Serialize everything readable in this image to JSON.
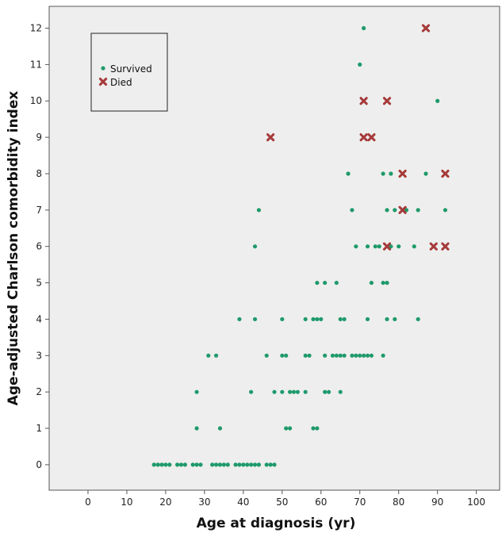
{
  "chart_data": {
    "type": "scatter",
    "title": "",
    "xlabel": "Age at diagnosis (yr)",
    "ylabel": "Age-adjusted Charlson comorbidity index",
    "xlim": [
      -10,
      106
    ],
    "ylim": [
      -0.7,
      12.6
    ],
    "x_ticks": [
      "0",
      "10",
      "20",
      "30",
      "40",
      "50",
      "60",
      "70",
      "80",
      "90",
      "100"
    ],
    "y_ticks": [
      "0",
      "1",
      "2",
      "3",
      "4",
      "5",
      "6",
      "7",
      "8",
      "9",
      "10",
      "11",
      "12"
    ],
    "grid": false,
    "legend_position": "top-left",
    "background": "#eeeeee",
    "series": [
      {
        "name": "Survived",
        "marker": "dot",
        "color": "#1f9a6b",
        "points": [
          [
            17,
            0
          ],
          [
            18,
            0
          ],
          [
            19,
            0
          ],
          [
            20,
            0
          ],
          [
            21,
            0
          ],
          [
            23,
            0
          ],
          [
            24,
            0
          ],
          [
            25,
            0
          ],
          [
            27,
            0
          ],
          [
            28,
            0
          ],
          [
            29,
            0
          ],
          [
            32,
            0
          ],
          [
            33,
            0
          ],
          [
            34,
            0
          ],
          [
            35,
            0
          ],
          [
            36,
            0
          ],
          [
            38,
            0
          ],
          [
            39,
            0
          ],
          [
            40,
            0
          ],
          [
            41,
            0
          ],
          [
            42,
            0
          ],
          [
            43,
            0
          ],
          [
            44,
            0
          ],
          [
            46,
            0
          ],
          [
            47,
            0
          ],
          [
            48,
            0
          ],
          [
            28,
            1
          ],
          [
            34,
            1
          ],
          [
            51,
            1
          ],
          [
            52,
            1
          ],
          [
            58,
            1
          ],
          [
            59,
            1
          ],
          [
            28,
            2
          ],
          [
            42,
            2
          ],
          [
            48,
            2
          ],
          [
            50,
            2
          ],
          [
            52,
            2
          ],
          [
            53,
            2
          ],
          [
            54,
            2
          ],
          [
            56,
            2
          ],
          [
            61,
            2
          ],
          [
            62,
            2
          ],
          [
            65,
            2
          ],
          [
            31,
            3
          ],
          [
            33,
            3
          ],
          [
            46,
            3
          ],
          [
            50,
            3
          ],
          [
            51,
            3
          ],
          [
            56,
            3
          ],
          [
            57,
            3
          ],
          [
            61,
            3
          ],
          [
            63,
            3
          ],
          [
            64,
            3
          ],
          [
            65,
            3
          ],
          [
            66,
            3
          ],
          [
            68,
            3
          ],
          [
            69,
            3
          ],
          [
            70,
            3
          ],
          [
            71,
            3
          ],
          [
            72,
            3
          ],
          [
            73,
            3
          ],
          [
            76,
            3
          ],
          [
            39,
            4
          ],
          [
            43,
            4
          ],
          [
            50,
            4
          ],
          [
            56,
            4
          ],
          [
            58,
            4
          ],
          [
            59,
            4
          ],
          [
            60,
            4
          ],
          [
            65,
            4
          ],
          [
            66,
            4
          ],
          [
            72,
            4
          ],
          [
            77,
            4
          ],
          [
            79,
            4
          ],
          [
            85,
            4
          ],
          [
            59,
            5
          ],
          [
            61,
            5
          ],
          [
            64,
            5
          ],
          [
            73,
            5
          ],
          [
            76,
            5
          ],
          [
            77,
            5
          ],
          [
            43,
            6
          ],
          [
            69,
            6
          ],
          [
            72,
            6
          ],
          [
            74,
            6
          ],
          [
            75,
            6
          ],
          [
            78,
            6
          ],
          [
            80,
            6
          ],
          [
            84,
            6
          ],
          [
            44,
            7
          ],
          [
            68,
            7
          ],
          [
            77,
            7
          ],
          [
            79,
            7
          ],
          [
            82,
            7
          ],
          [
            85,
            7
          ],
          [
            92,
            7
          ],
          [
            67,
            8
          ],
          [
            76,
            8
          ],
          [
            78,
            8
          ],
          [
            87,
            8
          ],
          [
            90,
            10
          ],
          [
            70,
            11
          ],
          [
            71,
            12
          ]
        ]
      },
      {
        "name": "Died",
        "marker": "x",
        "color": "#a63a3a",
        "points": [
          [
            47,
            9
          ],
          [
            71,
            9
          ],
          [
            73,
            9
          ],
          [
            71,
            10
          ],
          [
            77,
            10
          ],
          [
            87,
            12
          ],
          [
            81,
            8
          ],
          [
            92,
            8
          ],
          [
            81,
            7
          ],
          [
            77,
            6
          ],
          [
            89,
            6
          ],
          [
            92,
            6
          ]
        ]
      }
    ]
  }
}
